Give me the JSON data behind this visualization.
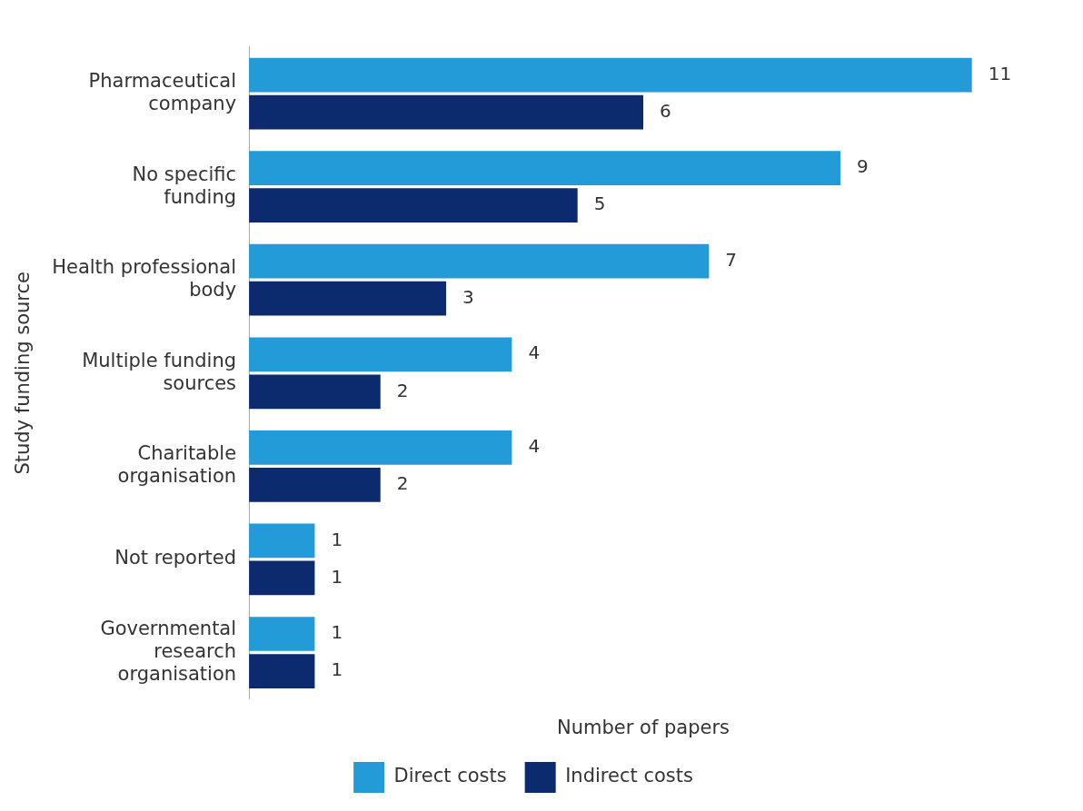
{
  "chart_data": {
    "type": "bar",
    "orientation": "horizontal",
    "xlabel": "Number of papers",
    "ylabel": "Study funding source",
    "categories": [
      "Pharmaceutical\ncompany",
      "No specific\nfunding",
      "Health professional\nbody",
      "Multiple funding\nsources",
      "Charitable\norganisation",
      "Not reported",
      "Governmental\nresearch\norganisation"
    ],
    "series": [
      {
        "name": "Direct costs",
        "color": "#229bd8",
        "values": [
          11,
          9,
          7,
          4,
          4,
          1,
          1
        ]
      },
      {
        "name": "Indirect costs",
        "color": "#0c2a6e",
        "values": [
          6,
          5,
          3,
          2,
          2,
          1,
          1
        ]
      }
    ],
    "data_labels": true,
    "grid": false,
    "legend": "bottom"
  }
}
